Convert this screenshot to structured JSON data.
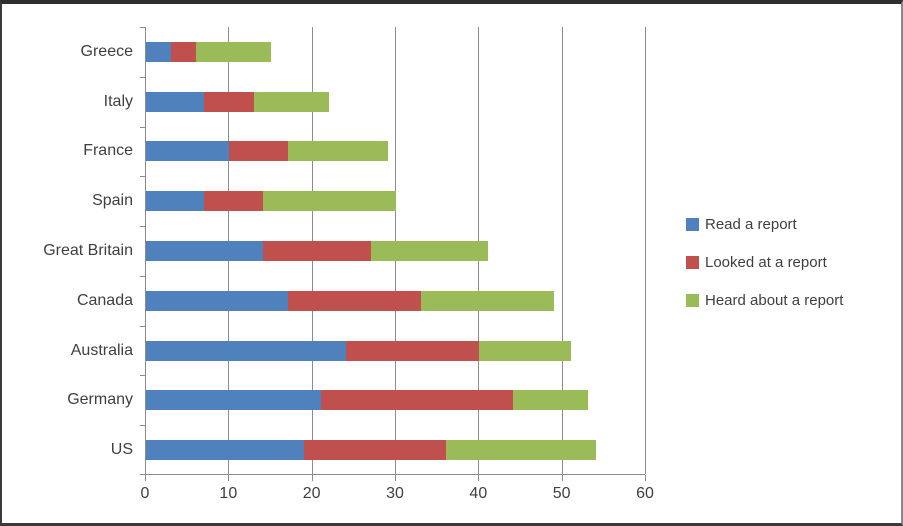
{
  "chart_data": {
    "type": "bar",
    "orientation": "horizontal",
    "stacked": true,
    "title": "",
    "xlabel": "",
    "ylabel": "",
    "categories": [
      "Greece",
      "Italy",
      "France",
      "Spain",
      "Great Britain",
      "Canada",
      "Australia",
      "Germany",
      "US"
    ],
    "series": [
      {
        "name": "Read a report",
        "color": "#4f81bd",
        "values": [
          3,
          7,
          10,
          7,
          14,
          17,
          24,
          21,
          19
        ]
      },
      {
        "name": "Looked at a report",
        "color": "#c0504d",
        "values": [
          3,
          6,
          7,
          7,
          13,
          16,
          16,
          23,
          17
        ]
      },
      {
        "name": "Heard about a report",
        "color": "#9bbb59",
        "values": [
          9,
          9,
          12,
          16,
          14,
          16,
          11,
          9,
          18
        ]
      }
    ],
    "totals": [
      15,
      22,
      29,
      30,
      41,
      49,
      51,
      53,
      54
    ],
    "x_ticks": [
      0,
      10,
      20,
      30,
      40,
      50,
      60
    ],
    "xlim": [
      0,
      60
    ],
    "grid": true,
    "legend_position": "right",
    "colors": {
      "axis": "#8c8c8c",
      "gridline": "#8c8c8c",
      "text": "#3f3f3f",
      "background": "#ffffff"
    }
  }
}
